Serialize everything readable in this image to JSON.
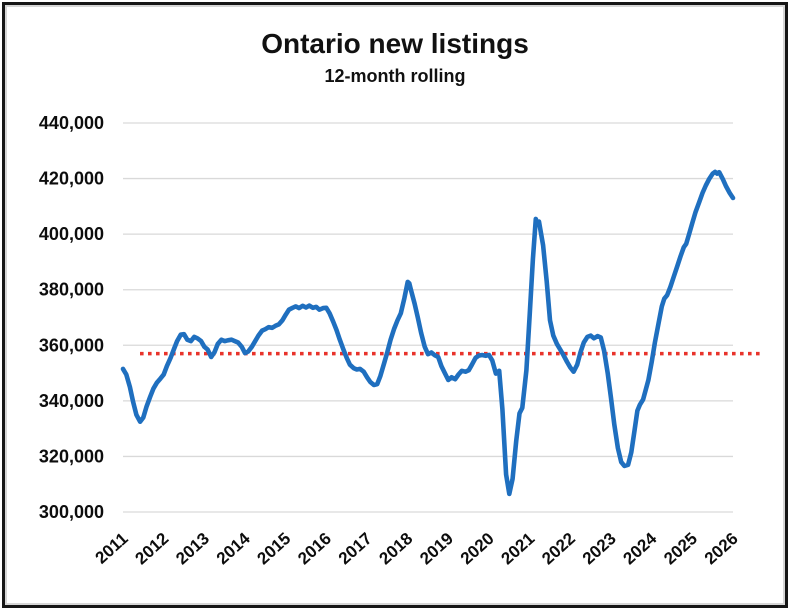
{
  "chart_data": {
    "type": "line",
    "title": "Ontario new listings",
    "subtitle": "12-month rolling",
    "xlabel": "",
    "ylabel": "",
    "grid": "horizontal",
    "legend": "none",
    "y_axis": {
      "min": 300000,
      "max": 440000,
      "step": 20000,
      "tick_labels": [
        "300,000",
        "320,000",
        "340,000",
        "360,000",
        "380,000",
        "400,000",
        "420,000",
        "440,000"
      ]
    },
    "x_axis": {
      "min": 2011,
      "max": 2026,
      "ticks": [
        2011,
        2012,
        2013,
        2014,
        2015,
        2016,
        2017,
        2018,
        2019,
        2020,
        2021,
        2022,
        2023,
        2024,
        2025,
        2026
      ]
    },
    "reference_line": {
      "value": 357000,
      "style": "dotted",
      "color": "#e8332b"
    },
    "series": [
      {
        "name": "Ontario new listings (12-month rolling)",
        "color": "#1f6fbf",
        "points": [
          [
            2011.0,
            351500
          ],
          [
            2011.08,
            349500
          ],
          [
            2011.17,
            345000
          ],
          [
            2011.25,
            339500
          ],
          [
            2011.33,
            335000
          ],
          [
            2011.42,
            332500
          ],
          [
            2011.5,
            334000
          ],
          [
            2011.58,
            338000
          ],
          [
            2011.67,
            341500
          ],
          [
            2011.75,
            344500
          ],
          [
            2011.83,
            346500
          ],
          [
            2011.92,
            348000
          ],
          [
            2012.0,
            349500
          ],
          [
            2012.08,
            352500
          ],
          [
            2012.17,
            355500
          ],
          [
            2012.25,
            358500
          ],
          [
            2012.33,
            361500
          ],
          [
            2012.42,
            363800
          ],
          [
            2012.5,
            364000
          ],
          [
            2012.58,
            362000
          ],
          [
            2012.67,
            361500
          ],
          [
            2012.75,
            363000
          ],
          [
            2012.83,
            362500
          ],
          [
            2012.92,
            361500
          ],
          [
            2013.0,
            359500
          ],
          [
            2013.08,
            358500
          ],
          [
            2013.17,
            355800
          ],
          [
            2013.25,
            357500
          ],
          [
            2013.33,
            360500
          ],
          [
            2013.42,
            362000
          ],
          [
            2013.5,
            361500
          ],
          [
            2013.58,
            361800
          ],
          [
            2013.67,
            362000
          ],
          [
            2013.75,
            361500
          ],
          [
            2013.83,
            361000
          ],
          [
            2013.92,
            359500
          ],
          [
            2014.0,
            357200
          ],
          [
            2014.08,
            357800
          ],
          [
            2014.17,
            359500
          ],
          [
            2014.25,
            361500
          ],
          [
            2014.33,
            363500
          ],
          [
            2014.42,
            365300
          ],
          [
            2014.5,
            365800
          ],
          [
            2014.58,
            366500
          ],
          [
            2014.67,
            366300
          ],
          [
            2014.75,
            367000
          ],
          [
            2014.83,
            367500
          ],
          [
            2014.92,
            369000
          ],
          [
            2015.0,
            371000
          ],
          [
            2015.08,
            372800
          ],
          [
            2015.17,
            373500
          ],
          [
            2015.25,
            374000
          ],
          [
            2015.33,
            373400
          ],
          [
            2015.42,
            374200
          ],
          [
            2015.5,
            373600
          ],
          [
            2015.58,
            374300
          ],
          [
            2015.67,
            373500
          ],
          [
            2015.75,
            373800
          ],
          [
            2015.83,
            372800
          ],
          [
            2015.92,
            373400
          ],
          [
            2016.0,
            373500
          ],
          [
            2016.08,
            371500
          ],
          [
            2016.17,
            368500
          ],
          [
            2016.25,
            365500
          ],
          [
            2016.33,
            362000
          ],
          [
            2016.42,
            358500
          ],
          [
            2016.5,
            355500
          ],
          [
            2016.58,
            353000
          ],
          [
            2016.67,
            351800
          ],
          [
            2016.75,
            351300
          ],
          [
            2016.83,
            351500
          ],
          [
            2016.92,
            350500
          ],
          [
            2017.0,
            348500
          ],
          [
            2017.08,
            346800
          ],
          [
            2017.17,
            345700
          ],
          [
            2017.25,
            346000
          ],
          [
            2017.33,
            349000
          ],
          [
            2017.42,
            353500
          ],
          [
            2017.5,
            357500
          ],
          [
            2017.58,
            362000
          ],
          [
            2017.67,
            366000
          ],
          [
            2017.75,
            369000
          ],
          [
            2017.83,
            371500
          ],
          [
            2017.92,
            377000
          ],
          [
            2018.0,
            382800
          ],
          [
            2018.04,
            382300
          ],
          [
            2018.08,
            380000
          ],
          [
            2018.17,
            375000
          ],
          [
            2018.25,
            370000
          ],
          [
            2018.33,
            364500
          ],
          [
            2018.42,
            359500
          ],
          [
            2018.5,
            356800
          ],
          [
            2018.58,
            357400
          ],
          [
            2018.67,
            356400
          ],
          [
            2018.75,
            355800
          ],
          [
            2018.83,
            352500
          ],
          [
            2018.92,
            349800
          ],
          [
            2019.0,
            347500
          ],
          [
            2019.08,
            348500
          ],
          [
            2019.17,
            347800
          ],
          [
            2019.25,
            349500
          ],
          [
            2019.33,
            350800
          ],
          [
            2019.42,
            350500
          ],
          [
            2019.5,
            351000
          ],
          [
            2019.58,
            353000
          ],
          [
            2019.67,
            355500
          ],
          [
            2019.75,
            356300
          ],
          [
            2019.83,
            356500
          ],
          [
            2019.92,
            356200
          ],
          [
            2020.0,
            356500
          ],
          [
            2020.08,
            354500
          ],
          [
            2020.17,
            349800
          ],
          [
            2020.25,
            350800
          ],
          [
            2020.33,
            337000
          ],
          [
            2020.42,
            313500
          ],
          [
            2020.5,
            306500
          ],
          [
            2020.58,
            312000
          ],
          [
            2020.67,
            325500
          ],
          [
            2020.75,
            335500
          ],
          [
            2020.82,
            337500
          ],
          [
            2020.92,
            351000
          ],
          [
            2021.0,
            371000
          ],
          [
            2021.08,
            391000
          ],
          [
            2021.15,
            405500
          ],
          [
            2021.19,
            403800
          ],
          [
            2021.23,
            404500
          ],
          [
            2021.33,
            396000
          ],
          [
            2021.42,
            383000
          ],
          [
            2021.5,
            369000
          ],
          [
            2021.58,
            363500
          ],
          [
            2021.67,
            360500
          ],
          [
            2021.75,
            358500
          ],
          [
            2021.83,
            356500
          ],
          [
            2021.92,
            354000
          ],
          [
            2022.0,
            352000
          ],
          [
            2022.08,
            350500
          ],
          [
            2022.17,
            353000
          ],
          [
            2022.25,
            357500
          ],
          [
            2022.33,
            361000
          ],
          [
            2022.42,
            363000
          ],
          [
            2022.5,
            363500
          ],
          [
            2022.58,
            362500
          ],
          [
            2022.67,
            363300
          ],
          [
            2022.75,
            362800
          ],
          [
            2022.83,
            358000
          ],
          [
            2022.92,
            350000
          ],
          [
            2023.0,
            341000
          ],
          [
            2023.08,
            331500
          ],
          [
            2023.17,
            323000
          ],
          [
            2023.25,
            318000
          ],
          [
            2023.33,
            316600
          ],
          [
            2023.42,
            317000
          ],
          [
            2023.5,
            321500
          ],
          [
            2023.58,
            329500
          ],
          [
            2023.65,
            336500
          ],
          [
            2023.71,
            338600
          ],
          [
            2023.79,
            340500
          ],
          [
            2023.92,
            347500
          ],
          [
            2024.0,
            354000
          ],
          [
            2024.08,
            361000
          ],
          [
            2024.17,
            368000
          ],
          [
            2024.25,
            374000
          ],
          [
            2024.31,
            376800
          ],
          [
            2024.38,
            378000
          ],
          [
            2024.46,
            381000
          ],
          [
            2024.54,
            384500
          ],
          [
            2024.63,
            388500
          ],
          [
            2024.71,
            392000
          ],
          [
            2024.79,
            395300
          ],
          [
            2024.85,
            396500
          ],
          [
            2024.92,
            400000
          ],
          [
            2025.0,
            404000
          ],
          [
            2025.08,
            408000
          ],
          [
            2025.17,
            411500
          ],
          [
            2025.25,
            414800
          ],
          [
            2025.33,
            417500
          ],
          [
            2025.42,
            420000
          ],
          [
            2025.5,
            421800
          ],
          [
            2025.56,
            422400
          ],
          [
            2025.61,
            421800
          ],
          [
            2025.66,
            422300
          ],
          [
            2025.75,
            419800
          ],
          [
            2025.83,
            417200
          ],
          [
            2025.92,
            414800
          ],
          [
            2026.0,
            413000
          ]
        ]
      }
    ],
    "colors": {
      "line": "#1f6fbf",
      "reference": "#e8332b",
      "gridline": "#d9d9d9",
      "text": "#0d0d0d",
      "background": "#ffffff"
    }
  }
}
